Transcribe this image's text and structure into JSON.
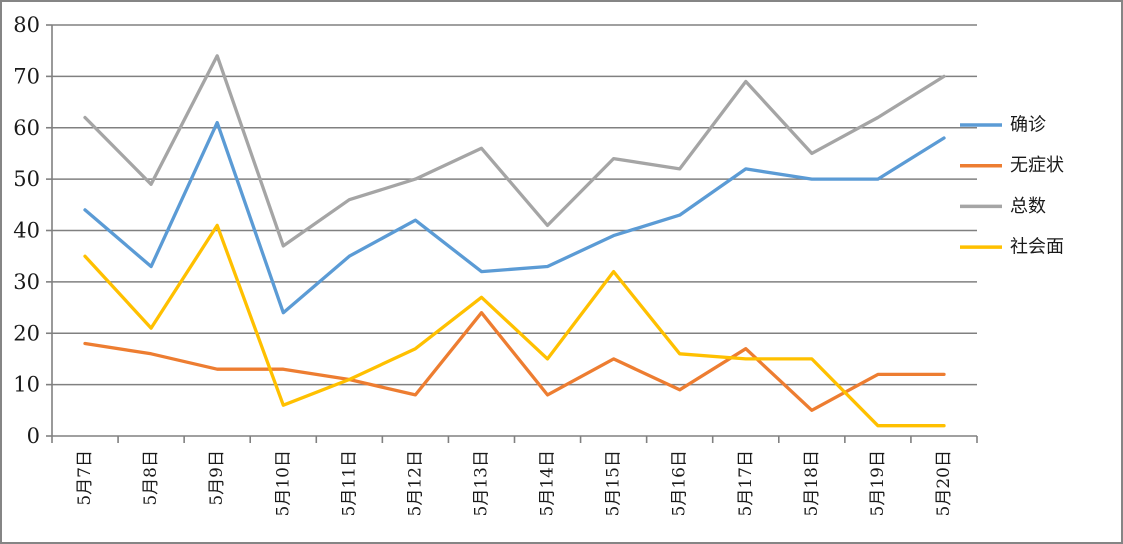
{
  "chart_data": {
    "type": "line",
    "title": "",
    "xlabel": "",
    "ylabel": "",
    "categories": [
      "5月7日",
      "5月8日",
      "5月9日",
      "5月10日",
      "5月11日",
      "5月12日",
      "5月13日",
      "5月14日",
      "5月15日",
      "5月16日",
      "5月17日",
      "5月18日",
      "5月19日",
      "5月20日"
    ],
    "series": [
      {
        "id": "confirmed",
        "name": "确诊",
        "color": "#5B9BD5",
        "values": [
          44,
          33,
          61,
          24,
          35,
          42,
          32,
          33,
          39,
          43,
          52,
          50,
          50,
          58
        ]
      },
      {
        "id": "asymptomatic",
        "name": "无症状",
        "color": "#ED7D31",
        "values": [
          18,
          16,
          13,
          13,
          11,
          8,
          24,
          8,
          15,
          9,
          17,
          5,
          12,
          12
        ]
      },
      {
        "id": "total",
        "name": "总数",
        "color": "#A5A5A5",
        "values": [
          62,
          49,
          74,
          37,
          46,
          50,
          56,
          41,
          54,
          52,
          69,
          55,
          62,
          70
        ]
      },
      {
        "id": "community",
        "name": "社会面",
        "color": "#FFC000",
        "values": [
          35,
          21,
          41,
          6,
          11,
          17,
          27,
          15,
          32,
          16,
          15,
          15,
          2,
          2
        ]
      }
    ],
    "ylim": [
      0,
      80
    ],
    "ytick_step": 10,
    "ytick_labels": [
      "0",
      "10",
      "20",
      "30",
      "40",
      "50",
      "60",
      "70",
      "80"
    ],
    "grid": true,
    "legend_position": "right"
  },
  "theme": {
    "background": "#ffffff",
    "gridline_color": "#808080",
    "axis_color": "#808080",
    "text_color": "#1a1a1a",
    "border_color": "#858585"
  }
}
